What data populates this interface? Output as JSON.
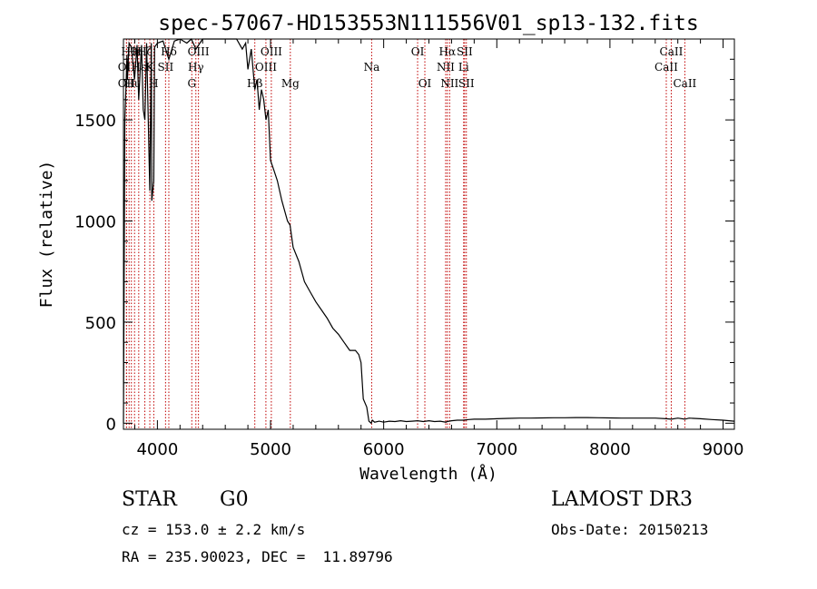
{
  "chart_data": {
    "type": "line",
    "title": "spec-57067-HD153553N111556V01_sp13-132.fits",
    "xlabel": "Wavelength (Å)",
    "ylabel": "Flux (relative)",
    "xlim": [
      3700,
      9100
    ],
    "ylim": [
      -30,
      1900
    ],
    "x_ticks": [
      4000,
      5000,
      6000,
      7000,
      8000,
      9000
    ],
    "y_ticks": [
      0,
      500,
      1000,
      1500
    ],
    "series": [
      {
        "name": "spectrum",
        "x": [
          3700,
          3712,
          3722,
          3731,
          3735,
          3750,
          3770,
          3798,
          3820,
          3835,
          3860,
          3875,
          3889,
          3905,
          3933,
          3946,
          3950,
          3968,
          3975,
          4000,
          4050,
          4101,
          4150,
          4200,
          4260,
          4300,
          4340,
          4400,
          4450,
          4500,
          4550,
          4600,
          4650,
          4700,
          4750,
          4780,
          4800,
          4830,
          4861,
          4880,
          4900,
          4920,
          4940,
          4960,
          4980,
          5000,
          5030,
          5060,
          5100,
          5150,
          5172,
          5200,
          5250,
          5300,
          5350,
          5400,
          5450,
          5500,
          5550,
          5600,
          5650,
          5700,
          5750,
          5780,
          5800,
          5820,
          5850,
          5870,
          5890,
          5900,
          5920,
          5960,
          6000,
          6050,
          6100,
          6150,
          6200,
          6250,
          6300,
          6350,
          6400,
          6450,
          6500,
          6550,
          6563,
          6600,
          6650,
          6700,
          6750,
          6800,
          6900,
          7000,
          7100,
          7200,
          7300,
          7400,
          7500,
          7600,
          7700,
          7800,
          7900,
          8000,
          8100,
          8200,
          8300,
          8400,
          8498,
          8542,
          8600,
          8662,
          8700,
          8800,
          8900,
          9000,
          9100
        ],
        "y": [
          0,
          1500,
          1650,
          1820,
          1700,
          1880,
          1860,
          1700,
          1870,
          1600,
          1870,
          1550,
          1500,
          1880,
          1150,
          1880,
          1100,
          1200,
          1860,
          1880,
          1890,
          1800,
          1890,
          1900,
          1880,
          1900,
          1850,
          1900,
          1900,
          1920,
          1920,
          1920,
          1920,
          1900,
          1850,
          1880,
          1750,
          1850,
          1650,
          1700,
          1550,
          1650,
          1600,
          1500,
          1550,
          1300,
          1250,
          1200,
          1100,
          1000,
          980,
          870,
          800,
          700,
          650,
          600,
          560,
          520,
          470,
          440,
          400,
          360,
          360,
          340,
          300,
          120,
          80,
          10,
          0,
          15,
          5,
          10,
          5,
          10,
          8,
          12,
          8,
          10,
          12,
          8,
          12,
          8,
          10,
          5,
          8,
          12,
          15,
          15,
          18,
          20,
          20,
          22,
          24,
          25,
          25,
          26,
          27,
          27,
          28,
          28,
          27,
          26,
          25,
          25,
          25,
          25,
          22,
          20,
          25,
          20,
          25,
          22,
          18,
          15,
          10
        ]
      }
    ],
    "spectral_lines": [
      {
        "wavelength": 3727,
        "label": "OII",
        "row": 2
      },
      {
        "wavelength": 3727,
        "label": "OII",
        "row": 3
      },
      {
        "wavelength": 3750,
        "label": "Hθ",
        "row": 1
      },
      {
        "wavelength": 3770,
        "label": "Hι",
        "row": 3
      },
      {
        "wavelength": 3798,
        "label": "Hη",
        "row": 1
      },
      {
        "wavelength": 3835,
        "label": "Hε",
        "row": 2
      },
      {
        "wavelength": 3889,
        "label": "Hζ",
        "row": 1
      },
      {
        "wavelength": 3933,
        "label": "K",
        "row": 2
      },
      {
        "wavelength": 3968,
        "label": "H",
        "row": 3
      },
      {
        "wavelength": 4072,
        "label": "SII",
        "row": 2
      },
      {
        "wavelength": 4101,
        "label": "Hδ",
        "row": 1
      },
      {
        "wavelength": 4304,
        "label": "G",
        "row": 3
      },
      {
        "wavelength": 4340,
        "label": "Hγ",
        "row": 2
      },
      {
        "wavelength": 4363,
        "label": "OIII",
        "row": 1
      },
      {
        "wavelength": 4861,
        "label": "Hβ",
        "row": 3
      },
      {
        "wavelength": 4959,
        "label": "OIII",
        "row": 2
      },
      {
        "wavelength": 5007,
        "label": "OIII",
        "row": 1
      },
      {
        "wavelength": 5175,
        "label": "Mg",
        "row": 3
      },
      {
        "wavelength": 5894,
        "label": "Na",
        "row": 2
      },
      {
        "wavelength": 6300,
        "label": "OI",
        "row": 1
      },
      {
        "wavelength": 6364,
        "label": "OI",
        "row": 3
      },
      {
        "wavelength": 6548,
        "label": "NII",
        "row": 2
      },
      {
        "wavelength": 6563,
        "label": "Hα",
        "row": 1
      },
      {
        "wavelength": 6583,
        "label": "NII",
        "row": 3
      },
      {
        "wavelength": 6707,
        "label": "Li",
        "row": 2
      },
      {
        "wavelength": 6716,
        "label": "SII",
        "row": 1
      },
      {
        "wavelength": 6731,
        "label": "SII",
        "row": 3
      },
      {
        "wavelength": 8498,
        "label": "CaII",
        "row": 2
      },
      {
        "wavelength": 8542,
        "label": "CaII",
        "row": 1
      },
      {
        "wavelength": 8662,
        "label": "CaII",
        "row": 3
      }
    ],
    "line_color": "#c00000"
  },
  "info": {
    "object_class": "STAR",
    "subclass": "G0",
    "survey": "LAMOST DR3",
    "redshift": "cz = 153.0 ± 2.2 km/s",
    "obs_date": "Obs-Date: 20150213",
    "coords": "RA = 235.90023, DEC =  11.89796"
  }
}
